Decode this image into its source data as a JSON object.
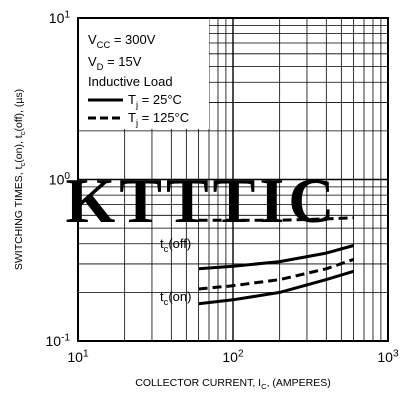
{
  "chart_data": {
    "type": "line",
    "xlabel": "COLLECTOR CURRENT, I_C, (AMPERES)",
    "ylabel": "SWITCHING TIMES, t_c(on), t_c(off), (µs)",
    "x_scale": "log",
    "y_scale": "log",
    "xlim": [
      10,
      1000
    ],
    "ylim": [
      0.1,
      10
    ],
    "x_ticks": [
      {
        "value": 10,
        "base": "10",
        "exp": "1"
      },
      {
        "value": 100,
        "base": "10",
        "exp": "2"
      },
      {
        "value": 1000,
        "base": "10",
        "exp": "3"
      }
    ],
    "y_ticks": [
      {
        "value": 0.1,
        "base": "10",
        "exp": "-1"
      },
      {
        "value": 1,
        "base": "10",
        "exp": "0"
      },
      {
        "value": 10,
        "base": "10",
        "exp": "1"
      }
    ],
    "grid": true,
    "legend_position": "top-left",
    "conditions": [
      "V_CC = 300V",
      "V_D = 15V",
      "Inductive Load"
    ],
    "legend": [
      {
        "label": "T_j = 25°C",
        "style": "solid"
      },
      {
        "label": "T_j = 125°C",
        "style": "dashed"
      }
    ],
    "annotations": [
      {
        "text": "t_c(off)",
        "points_to": "toff"
      },
      {
        "text": "t_c(on)",
        "points_to": "ton"
      }
    ],
    "series": [
      {
        "key": "toff_125",
        "curve": "t_c(off)",
        "tj": "125°C",
        "style": "dashed",
        "x": [
          60,
          100,
          200,
          400,
          600
        ],
        "y": [
          0.56,
          0.56,
          0.56,
          0.57,
          0.58
        ]
      },
      {
        "key": "toff_25",
        "curve": "t_c(off)",
        "tj": "25°C",
        "style": "solid",
        "x": [
          60,
          100,
          200,
          400,
          600
        ],
        "y": [
          0.28,
          0.29,
          0.31,
          0.35,
          0.39
        ]
      },
      {
        "key": "ton_125",
        "curve": "t_c(on)",
        "tj": "125°C",
        "style": "dashed",
        "x": [
          60,
          100,
          200,
          400,
          600
        ],
        "y": [
          0.21,
          0.22,
          0.24,
          0.28,
          0.32
        ]
      },
      {
        "key": "ton_25",
        "curve": "t_c(on)",
        "tj": "25°C",
        "style": "solid",
        "x": [
          60,
          100,
          200,
          400,
          600
        ],
        "y": [
          0.17,
          0.18,
          0.2,
          0.24,
          0.27
        ]
      }
    ]
  },
  "watermark": {
    "text": "KTTTIC",
    "color": "#e8000f"
  },
  "colors": {
    "curve": "#000000",
    "grid": "#000000",
    "background": "#ffffff"
  }
}
